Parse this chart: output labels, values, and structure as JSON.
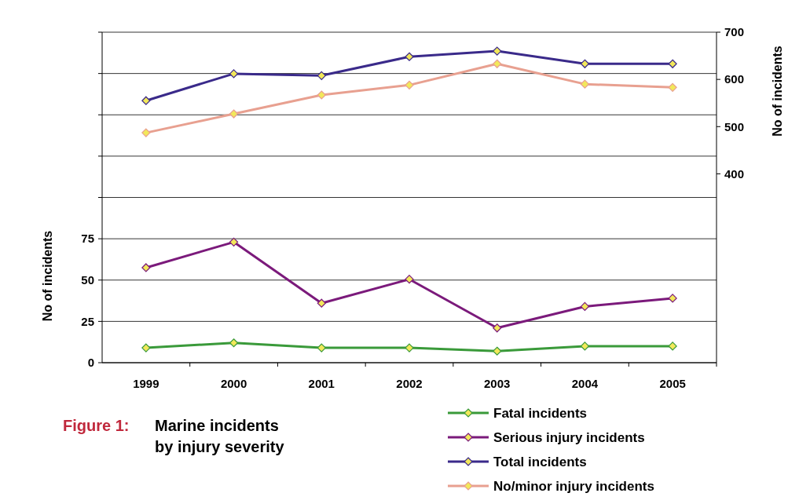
{
  "chart_data": {
    "type": "line",
    "title": "Marine incidents by injury severity",
    "annotations": [
      "Figure 1:"
    ],
    "ylabel": "No of incidents",
    "y2label": "No of incidents",
    "categories": [
      "1999",
      "2000",
      "2001",
      "2002",
      "2003",
      "2004",
      "2005"
    ],
    "series": [
      {
        "name": "Fatal incidents",
        "color": "#3a9a3a",
        "values": [
          9,
          12,
          9,
          9,
          7,
          10,
          10
        ]
      },
      {
        "name": "Serious injury incidents",
        "color": "#7b1a7b",
        "values": [
          57.5,
          73,
          36,
          50.5,
          21,
          34,
          39
        ]
      },
      {
        "name": "Total incidents",
        "color": "#3a2a8a",
        "axis": "y2",
        "values": [
          555,
          612,
          608,
          648,
          660,
          633,
          633
        ]
      },
      {
        "name": "No/minor injury incidents",
        "color": "#e8a090",
        "axis": "y2",
        "values": [
          487,
          527,
          567,
          588,
          633,
          590,
          583
        ]
      }
    ],
    "ylim": [
      0,
      200
    ],
    "yticks": [
      0,
      25,
      50,
      75,
      {
        "value": 100,
        "label": null
      },
      {
        "value": 125,
        "label": null
      },
      {
        "value": 150,
        "label": null
      },
      {
        "value": 175,
        "label": null
      },
      {
        "value": 200,
        "label": null
      }
    ],
    "y2lim": [
      0,
      700
    ],
    "y2ticks": [
      400,
      500,
      600,
      700
    ],
    "grid": "y",
    "legend": "bottom right",
    "marker": "diamond",
    "line_style": "solid"
  }
}
